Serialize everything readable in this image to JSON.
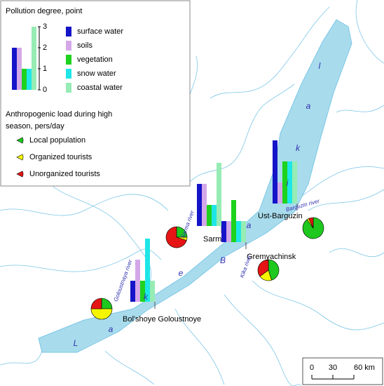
{
  "legend": {
    "pollution_title": "Pollution degree, point",
    "ticks": [
      0,
      1,
      2,
      3
    ],
    "example_values": [
      2,
      2,
      1,
      1,
      3
    ],
    "series": [
      {
        "name": "surface water",
        "color": "#1414c8"
      },
      {
        "name": "soils",
        "color": "#d4a8e8"
      },
      {
        "name": "vegetation",
        "color": "#1ed21e"
      },
      {
        "name": "snow water",
        "color": "#1ee6e6"
      },
      {
        "name": "coastal water",
        "color": "#96ecb4"
      }
    ],
    "load_title": "Anthropogenic load during high season, pers/day",
    "load_series": [
      {
        "name": "Local population",
        "color": "#1ec81e"
      },
      {
        "name": "Organized tourists",
        "color": "#f5f500"
      },
      {
        "name": "Unorganized tourists",
        "color": "#e61414"
      }
    ]
  },
  "sites": [
    {
      "name": "Bol'shoye Goloustnoye",
      "values": [
        1,
        2,
        1,
        3,
        1
      ],
      "pie": [
        25,
        50,
        25
      ]
    },
    {
      "name": "Sarma",
      "values": [
        2,
        2,
        1,
        1,
        3
      ],
      "pie": [
        25,
        5,
        70
      ]
    },
    {
      "name": "Gremyachinsk",
      "values": [
        1,
        1,
        2,
        1,
        1
      ],
      "pie": [
        45,
        20,
        35
      ]
    },
    {
      "name": "Ust-Barguzin",
      "values": [
        3,
        1,
        2,
        2,
        2
      ],
      "pie": [
        90,
        3,
        7
      ]
    }
  ],
  "rivers": [
    "Goloustnaya river",
    "Sarma river",
    "Kika river",
    "Barguzin river"
  ],
  "lake_letters": [
    "L",
    "a",
    "k",
    "e",
    "B",
    "a",
    "i",
    "k",
    "a",
    "l"
  ],
  "scale": {
    "ticks": [
      0,
      30,
      {
        "value": 60,
        "label": "60 km"
      }
    ]
  }
}
